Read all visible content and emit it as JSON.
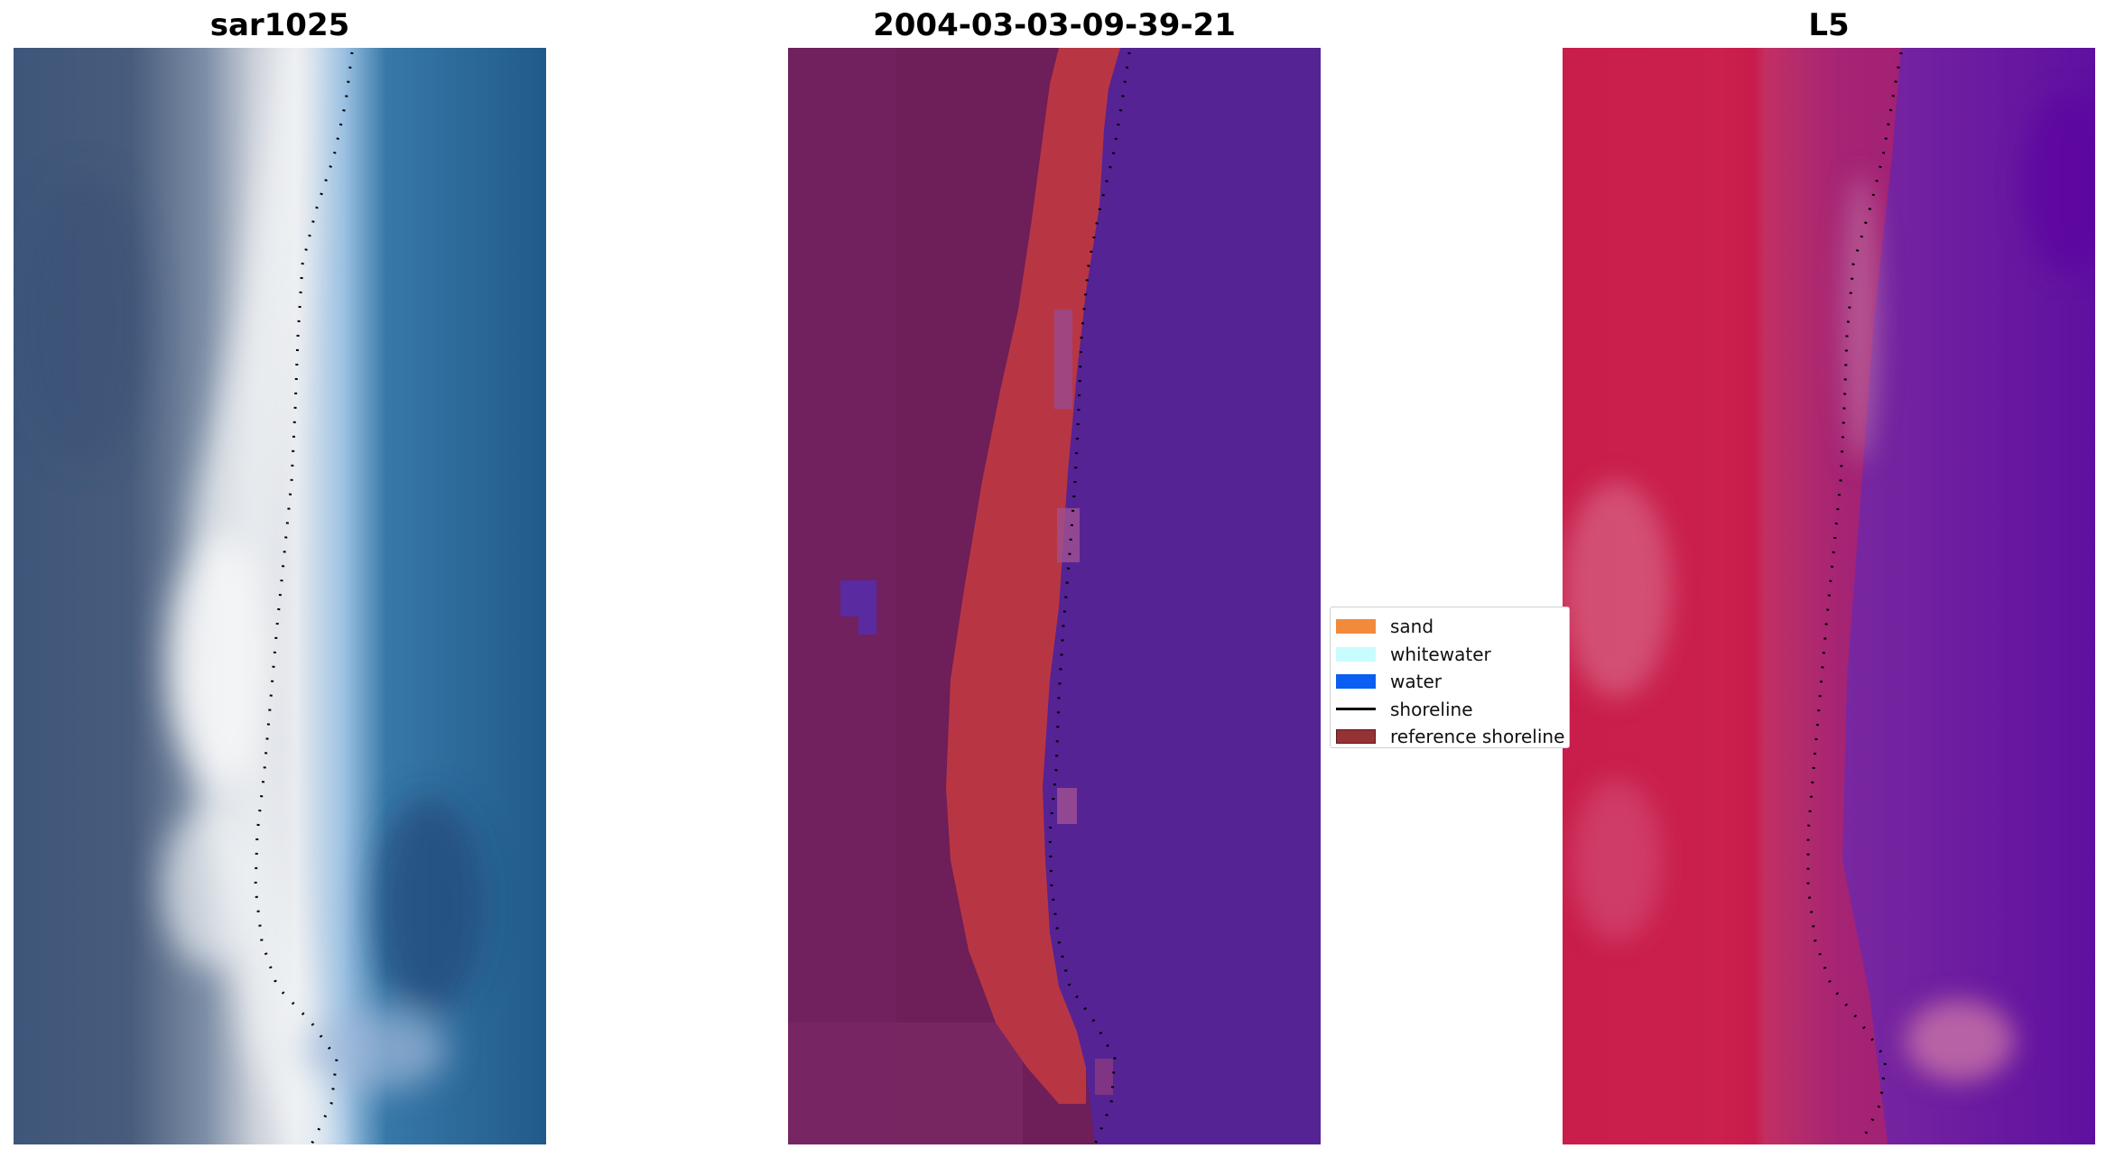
{
  "panels": [
    {
      "title": "sar1025"
    },
    {
      "title": "2004-03-03-09-39-21"
    },
    {
      "title": "L5"
    }
  ],
  "legend": {
    "items": [
      {
        "label": "sand",
        "color": "#f28a3c",
        "kind": "patch"
      },
      {
        "label": "whitewater",
        "color": "#c8fcff",
        "kind": "patch"
      },
      {
        "label": "water",
        "color": "#0b5ef2",
        "kind": "patch"
      },
      {
        "label": "shoreline",
        "color": "#000000",
        "kind": "line"
      },
      {
        "label": "reference shoreline",
        "color": "#943236",
        "kind": "patch"
      }
    ]
  },
  "colors": {
    "rgb_land": "#3e567a",
    "rgb_water": "#215a8a",
    "rgb_whitewater": "#eef2f4",
    "class_land": "#6e1e58",
    "class_sand": "#b83644",
    "class_water": "#552394",
    "index_land": "#c71a45",
    "index_water": "#5f10a0",
    "shoreline_dots": "#000000"
  }
}
